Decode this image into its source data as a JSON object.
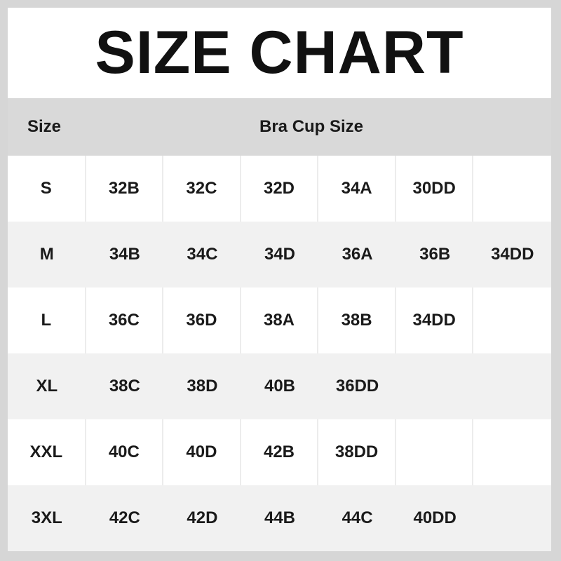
{
  "title": "SIZE CHART",
  "header": {
    "size": "Size",
    "cup": "Bra Cup Size"
  },
  "rows": [
    {
      "size": "S",
      "cups": [
        "32B",
        "32C",
        "32D",
        "34A",
        "30DD",
        ""
      ]
    },
    {
      "size": "M",
      "cups": [
        "34B",
        "34C",
        "34D",
        "36A",
        "36B",
        "34DD"
      ]
    },
    {
      "size": "L",
      "cups": [
        "36C",
        "36D",
        "38A",
        "38B",
        "34DD",
        ""
      ]
    },
    {
      "size": "XL",
      "cups": [
        "38C",
        "38D",
        "40B",
        "36DD",
        "",
        ""
      ]
    },
    {
      "size": "XXL",
      "cups": [
        "40C",
        "40D",
        "42B",
        "38DD",
        "",
        ""
      ]
    },
    {
      "size": "3XL",
      "cups": [
        "42C",
        "42D",
        "44B",
        "44C",
        "40DD",
        ""
      ]
    }
  ],
  "colors": {
    "header_bg": "#d9d9d9",
    "alt_row_bg": "#f1f1f1",
    "frame": "#d6d6d6"
  }
}
